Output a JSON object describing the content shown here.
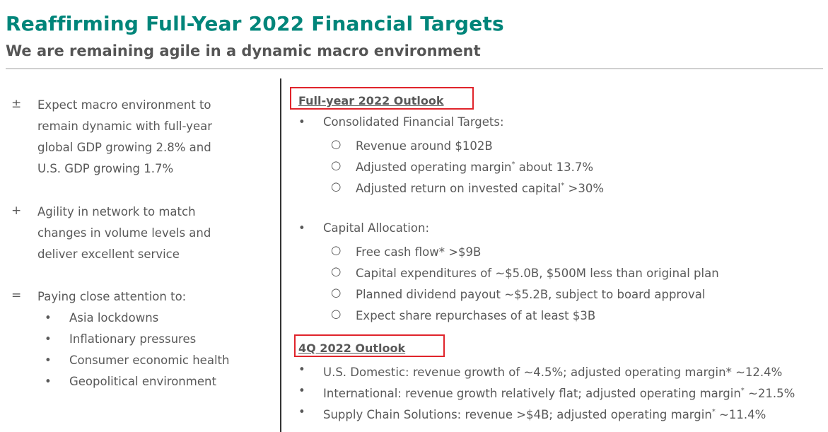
{
  "header": {
    "title": "Reaffirming Full-Year 2022 Financial Targets",
    "subtitle": "We are remaining agile in a dynamic macro environment"
  },
  "left": {
    "items": [
      {
        "symbol": "±",
        "lines": [
          "Expect macro environment to",
          "remain dynamic with full-year",
          "global GDP growing 2.8% and",
          "U.S. GDP growing 1.7%"
        ]
      },
      {
        "symbol": "+",
        "lines": [
          "Agility in network to match",
          "changes in volume levels and",
          "deliver excellent service"
        ]
      },
      {
        "symbol": "=",
        "lines": [
          "Paying close attention to:"
        ],
        "bullets": [
          "Asia lockdowns",
          "Inflationary pressures",
          "Consumer economic health",
          "Geopolitical environment"
        ]
      }
    ]
  },
  "right": {
    "full_year": {
      "heading": "Full-year 2022 Outlook",
      "groups": [
        {
          "label": "Consolidated Financial Targets:",
          "items": [
            {
              "text": "Revenue around $102B",
              "sup": "",
              "after": ""
            },
            {
              "text": "Adjusted operating margin",
              "sup": "*",
              "after": " about 13.7%"
            },
            {
              "text": "Adjusted return on invested capital",
              "sup": "*",
              "after": " >30%"
            }
          ]
        },
        {
          "label": "Capital Allocation:",
          "items": [
            {
              "text": "Free cash flow* >$9B",
              "sup": "",
              "after": ""
            },
            {
              "text": "Capital expenditures of ~$5.0B, $500M less than original plan",
              "sup": "",
              "after": ""
            },
            {
              "text": "Planned dividend payout ~$5.2B, subject to board approval",
              "sup": "",
              "after": ""
            },
            {
              "text": "Expect share repurchases of at least $3B",
              "sup": "",
              "after": ""
            }
          ]
        }
      ]
    },
    "q4": {
      "heading": "4Q 2022 Outlook",
      "items": [
        {
          "text": "U.S. Domestic: revenue growth of ~4.5%; adjusted operating margin* ~12.4%",
          "sup": "",
          "after": ""
        },
        {
          "text": "International: revenue growth relatively flat; adjusted operating margin",
          "sup": "*",
          "after": " ~21.5%"
        },
        {
          "text": "Supply Chain Solutions: revenue >$4B; adjusted operating margin",
          "sup": "*",
          "after": " ~11.4%"
        }
      ]
    },
    "markers": {
      "bullet": "•",
      "sub": "○"
    },
    "highlight_color": "#e0242b"
  }
}
